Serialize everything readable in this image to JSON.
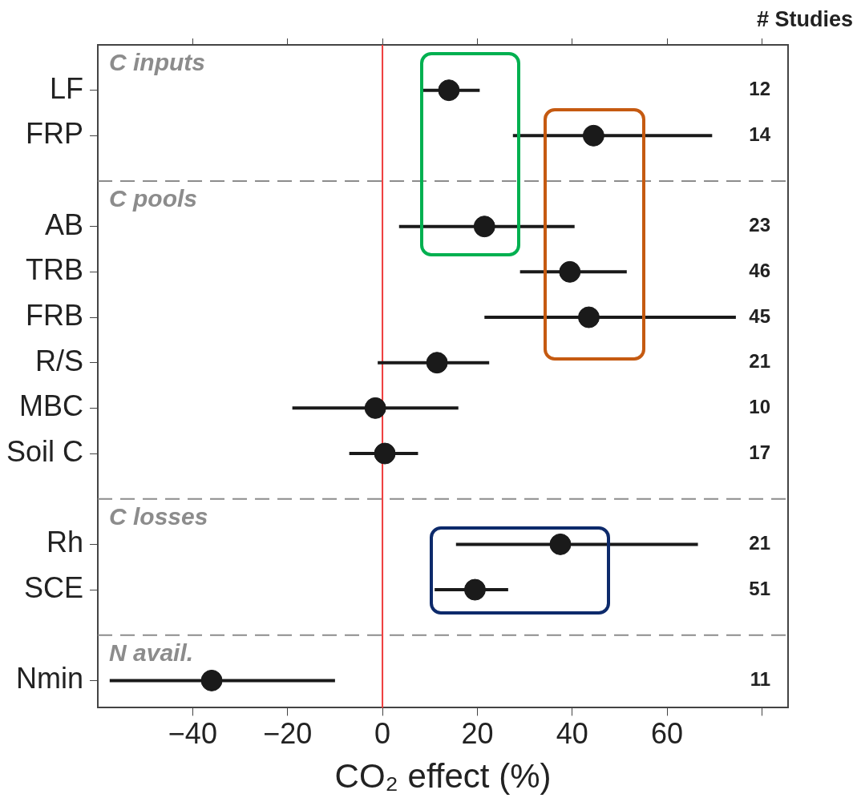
{
  "chart_data": {
    "type": "scatter",
    "orientation": "horizontal",
    "xlabel": "CO₂ effect (%)",
    "y2label": "# Studies",
    "categories": [
      "LF",
      "FRP",
      null,
      "AB",
      "TRB",
      "FRB",
      "R/S",
      "MBC",
      "Soil C",
      null,
      "Rh",
      "SCE",
      null,
      "Nmin"
    ],
    "values": [
      14,
      44.5,
      null,
      21.5,
      39.5,
      43.5,
      11.5,
      -1.5,
      0.5,
      null,
      37.5,
      19.5,
      null,
      -36
    ],
    "errors": [
      [
        8.5,
        20.5
      ],
      [
        27.5,
        69.5
      ],
      null,
      [
        3.5,
        40.5
      ],
      [
        29,
        51.5
      ],
      [
        21.5,
        74.5
      ],
      [
        -1,
        22.5
      ],
      [
        -19,
        16
      ],
      [
        -7,
        7.5
      ],
      null,
      [
        15.5,
        66.5
      ],
      [
        11,
        26.5
      ],
      null,
      [
        -57.5,
        -10
      ]
    ],
    "color": "#1a1a1a",
    "marker": "circle",
    "xlim": [
      -60,
      85.5
    ],
    "xticks": [
      {
        "value": -40,
        "label": "−40"
      },
      {
        "value": -20,
        "label": "−20"
      },
      0,
      20,
      40,
      60,
      {
        "value": 80,
        "label": null
      }
    ],
    "ref_lines": [
      {
        "axis": "x",
        "value": 0,
        "color": "#ee3b3b"
      }
    ],
    "annotations": [
      "C inputs",
      "C pools",
      "C losses",
      "N avail.",
      "12",
      "14",
      "23",
      "46",
      "45",
      "21",
      "10",
      "17",
      "21",
      "51",
      "11"
    ],
    "grid": false,
    "legend": false
  }
}
